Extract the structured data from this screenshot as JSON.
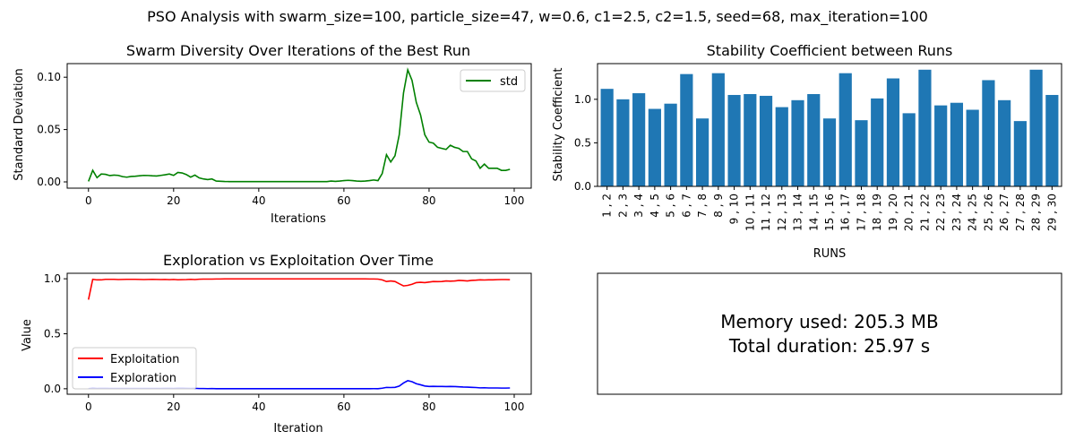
{
  "suptitle": "PSO Analysis with swarm_size=100, particle_size=47, w=0.6, c1=2.5, c2=1.5, seed=68, max_iteration=100",
  "chart_data": [
    {
      "type": "line",
      "title": "Swarm Diversity Over Iterations of the Best Run",
      "xlabel": "Iterations",
      "ylabel": "Standard Deviation",
      "xlim": [
        -5,
        104
      ],
      "ylim": [
        -0.006,
        0.113
      ],
      "xticks": [
        0,
        20,
        40,
        60,
        80,
        100
      ],
      "xtick_labels": [
        "0",
        "20",
        "40",
        "60",
        "80",
        "100"
      ],
      "yticks": [
        0.0,
        0.05,
        0.1
      ],
      "ytick_labels": [
        "0.00",
        "0.05",
        "0.10"
      ],
      "legend": "top-right",
      "series": [
        {
          "name": "std",
          "color": "#008000",
          "x": [
            0,
            1,
            2,
            3,
            4,
            5,
            6,
            7,
            8,
            9,
            10,
            11,
            12,
            13,
            14,
            15,
            16,
            17,
            18,
            19,
            20,
            21,
            22,
            23,
            24,
            25,
            26,
            27,
            28,
            29,
            30,
            31,
            32,
            33,
            34,
            35,
            36,
            37,
            38,
            39,
            40,
            41,
            42,
            43,
            44,
            45,
            46,
            47,
            48,
            49,
            50,
            51,
            52,
            53,
            54,
            55,
            56,
            57,
            58,
            59,
            60,
            61,
            62,
            63,
            64,
            65,
            66,
            67,
            68,
            69,
            70,
            71,
            72,
            73,
            74,
            75,
            76,
            77,
            78,
            79,
            80,
            81,
            82,
            83,
            84,
            85,
            86,
            87,
            88,
            89,
            90,
            91,
            92,
            93,
            94,
            95,
            96,
            97,
            98,
            99
          ],
          "values": [
            0.0005,
            0.011,
            0.004,
            0.0075,
            0.0072,
            0.006,
            0.0065,
            0.0062,
            0.005,
            0.0045,
            0.0052,
            0.0054,
            0.0058,
            0.0062,
            0.0061,
            0.0058,
            0.0056,
            0.0062,
            0.0068,
            0.0075,
            0.0062,
            0.009,
            0.0085,
            0.007,
            0.0045,
            0.0065,
            0.0038,
            0.0028,
            0.0022,
            0.0028,
            0.0008,
            0.0006,
            0.0004,
            0.0003,
            0.0003,
            0.0003,
            0.0003,
            0.0003,
            0.0003,
            0.0003,
            0.0003,
            0.0003,
            0.0003,
            0.0003,
            0.0003,
            0.0003,
            0.0003,
            0.0003,
            0.0003,
            0.0003,
            0.0003,
            0.0003,
            0.0003,
            0.0003,
            0.0003,
            0.0003,
            0.0003,
            0.0008,
            0.0005,
            0.0008,
            0.0012,
            0.0015,
            0.0012,
            0.0008,
            0.0006,
            0.0008,
            0.0012,
            0.0018,
            0.0012,
            0.008,
            0.026,
            0.019,
            0.025,
            0.045,
            0.085,
            0.107,
            0.097,
            0.076,
            0.064,
            0.045,
            0.038,
            0.037,
            0.033,
            0.032,
            0.031,
            0.035,
            0.033,
            0.032,
            0.029,
            0.029,
            0.022,
            0.02,
            0.013,
            0.017,
            0.013,
            0.013,
            0.013,
            0.011,
            0.011,
            0.012
          ]
        }
      ]
    },
    {
      "type": "bar",
      "title": "Stability Coefficient between Runs",
      "xlabel": "RUNS",
      "ylabel": "Stability Coefficient",
      "ylim": [
        0,
        1.41
      ],
      "yticks": [
        0.0,
        0.5,
        1.0
      ],
      "ytick_labels": [
        "0.0",
        "0.5",
        "1.0"
      ],
      "bar_color": "#1f77b4",
      "categories": [
        "1 , 2",
        "2 , 3",
        "3 , 4",
        "4 , 5",
        "5 , 6",
        "6 , 7",
        "7 , 8",
        "8 , 9",
        "9 , 10",
        "10 , 11",
        "11 , 12",
        "12 , 13",
        "13 , 14",
        "14 , 15",
        "15 , 16",
        "16 , 17",
        "17 , 18",
        "18 , 19",
        "19 , 20",
        "20 , 21",
        "21 , 22",
        "22 , 23",
        "23 , 24",
        "24 , 25",
        "25 , 26",
        "26 , 27",
        "27 , 28",
        "28 , 29",
        "29 , 30"
      ],
      "values": [
        1.12,
        1.0,
        1.07,
        0.89,
        0.95,
        1.29,
        0.78,
        1.3,
        1.05,
        1.06,
        1.04,
        0.91,
        0.99,
        1.06,
        0.78,
        1.3,
        0.76,
        1.01,
        1.24,
        0.84,
        1.34,
        0.93,
        0.96,
        0.88,
        1.22,
        0.99,
        0.75,
        1.34,
        1.05
      ]
    },
    {
      "type": "line",
      "title": "Exploration vs Exploitation Over Time",
      "xlabel": "Iteration",
      "ylabel": "Value",
      "xlim": [
        -5,
        104
      ],
      "ylim": [
        -0.05,
        1.05
      ],
      "xticks": [
        0,
        20,
        40,
        60,
        80,
        100
      ],
      "xtick_labels": [
        "0",
        "20",
        "40",
        "60",
        "80",
        "100"
      ],
      "yticks": [
        0.0,
        0.5,
        1.0
      ],
      "ytick_labels": [
        "0.0",
        "0.5",
        "1.0"
      ],
      "legend": "lower-left",
      "series": [
        {
          "name": "Exploitation",
          "color": "#ff0000",
          "x": [
            0,
            1,
            2,
            3,
            4,
            5,
            6,
            7,
            8,
            9,
            10,
            11,
            12,
            13,
            14,
            15,
            16,
            17,
            18,
            19,
            20,
            21,
            22,
            23,
            24,
            25,
            26,
            27,
            28,
            29,
            30,
            31,
            32,
            33,
            34,
            35,
            36,
            37,
            38,
            39,
            40,
            41,
            42,
            43,
            44,
            45,
            46,
            47,
            48,
            49,
            50,
            51,
            52,
            53,
            54,
            55,
            56,
            57,
            58,
            59,
            60,
            61,
            62,
            63,
            64,
            65,
            66,
            67,
            68,
            69,
            70,
            71,
            72,
            73,
            74,
            75,
            76,
            77,
            78,
            79,
            80,
            81,
            82,
            83,
            84,
            85,
            86,
            87,
            88,
            89,
            90,
            91,
            92,
            93,
            94,
            95,
            96,
            97,
            98,
            99
          ],
          "values": [
            0.81,
            0.995,
            0.99,
            0.99,
            0.995,
            0.995,
            0.995,
            0.993,
            0.994,
            0.995,
            0.995,
            0.995,
            0.994,
            0.993,
            0.994,
            0.995,
            0.994,
            0.993,
            0.994,
            0.992,
            0.994,
            0.991,
            0.992,
            0.993,
            0.995,
            0.993,
            0.996,
            0.997,
            0.997,
            0.997,
            0.998,
            0.998,
            0.999,
            0.999,
            0.999,
            0.999,
            0.999,
            0.999,
            0.999,
            0.999,
            0.999,
            0.999,
            0.999,
            0.999,
            0.999,
            0.999,
            0.999,
            0.999,
            0.999,
            0.999,
            0.999,
            0.999,
            0.999,
            0.999,
            0.999,
            0.999,
            0.999,
            0.999,
            0.999,
            0.999,
            0.999,
            0.999,
            0.999,
            0.999,
            0.999,
            0.999,
            0.998,
            0.998,
            0.997,
            0.99,
            0.975,
            0.98,
            0.975,
            0.955,
            0.935,
            0.94,
            0.95,
            0.965,
            0.968,
            0.965,
            0.97,
            0.975,
            0.974,
            0.975,
            0.98,
            0.978,
            0.98,
            0.985,
            0.983,
            0.98,
            0.985,
            0.987,
            0.99,
            0.989,
            0.99,
            0.99,
            0.992,
            0.993,
            0.993,
            0.992
          ]
        },
        {
          "name": "Exploration",
          "color": "#0000ff",
          "x": [
            0,
            1,
            2,
            3,
            4,
            5,
            6,
            7,
            8,
            9,
            10,
            11,
            12,
            13,
            14,
            15,
            16,
            17,
            18,
            19,
            20,
            21,
            22,
            23,
            24,
            25,
            26,
            27,
            28,
            29,
            30,
            31,
            32,
            33,
            34,
            35,
            36,
            37,
            38,
            39,
            40,
            41,
            42,
            43,
            44,
            45,
            46,
            47,
            48,
            49,
            50,
            51,
            52,
            53,
            54,
            55,
            56,
            57,
            58,
            59,
            60,
            61,
            62,
            63,
            64,
            65,
            66,
            67,
            68,
            69,
            70,
            71,
            72,
            73,
            74,
            75,
            76,
            77,
            78,
            79,
            80,
            81,
            82,
            83,
            84,
            85,
            86,
            87,
            88,
            89,
            90,
            91,
            92,
            93,
            94,
            95,
            96,
            97,
            98,
            99
          ],
          "values": [
            0.001,
            0.006,
            0.003,
            0.004,
            0.004,
            0.003,
            0.003,
            0.003,
            0.003,
            0.003,
            0.003,
            0.003,
            0.003,
            0.003,
            0.003,
            0.003,
            0.003,
            0.003,
            0.004,
            0.004,
            0.003,
            0.005,
            0.005,
            0.004,
            0.003,
            0.004,
            0.002,
            0.002,
            0.001,
            0.002,
            0.0005,
            0.0004,
            0.0003,
            0.0003,
            0.0003,
            0.0003,
            0.0003,
            0.0003,
            0.0003,
            0.0003,
            0.0003,
            0.0003,
            0.0003,
            0.0003,
            0.0003,
            0.0003,
            0.0003,
            0.0003,
            0.0003,
            0.0003,
            0.0003,
            0.0003,
            0.0003,
            0.0003,
            0.0003,
            0.0003,
            0.0003,
            0.0005,
            0.0004,
            0.0005,
            0.0007,
            0.0008,
            0.0007,
            0.0005,
            0.0004,
            0.0005,
            0.0007,
            0.001,
            0.0007,
            0.005,
            0.012,
            0.011,
            0.013,
            0.024,
            0.052,
            0.073,
            0.064,
            0.046,
            0.036,
            0.025,
            0.021,
            0.022,
            0.021,
            0.021,
            0.02,
            0.021,
            0.02,
            0.018,
            0.016,
            0.015,
            0.013,
            0.011,
            0.008,
            0.009,
            0.007,
            0.007,
            0.007,
            0.006,
            0.006,
            0.007
          ]
        }
      ]
    }
  ],
  "info_panel": {
    "memory_text": "Memory used: 205.3 MB",
    "duration_text": "Total duration: 25.97 s"
  }
}
